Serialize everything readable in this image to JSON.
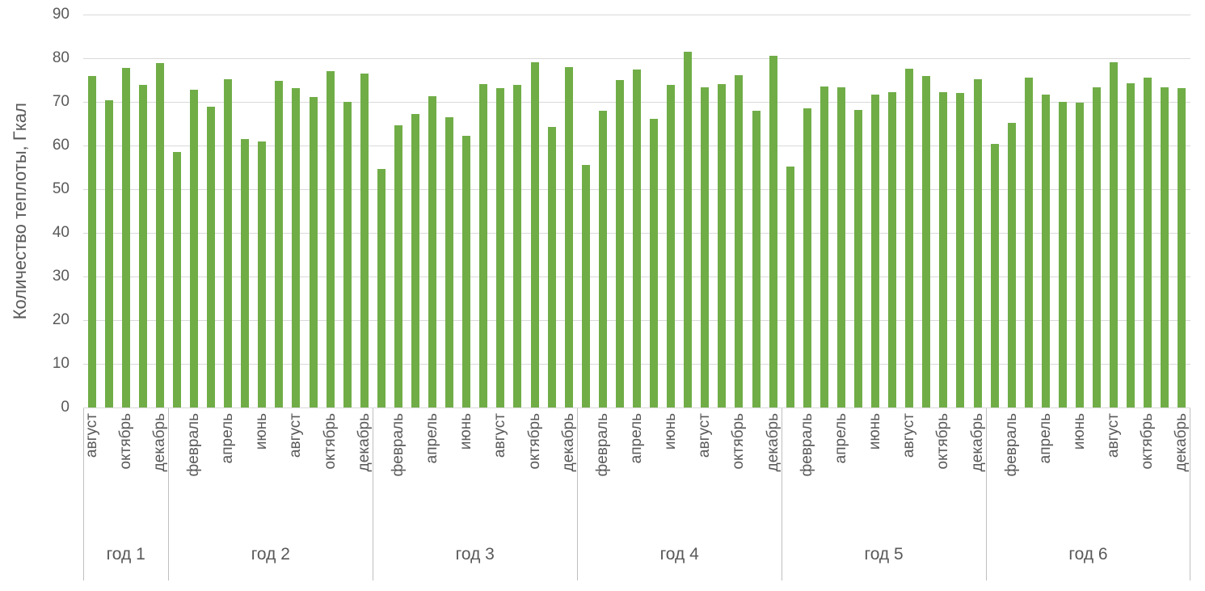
{
  "chart_data": {
    "type": "bar",
    "title": "",
    "xlabel": "",
    "ylabel": "Количество теплоты, Гкал",
    "ylim": [
      0,
      90
    ],
    "yticks": [
      0,
      10,
      20,
      30,
      40,
      50,
      60,
      70,
      80,
      90
    ],
    "grid": true,
    "legend": "none",
    "bar_color": "#70ad47",
    "grid_color": "#d9d9d9",
    "separator_color": "#bfbfbf",
    "text_color": "#595959",
    "series_name": "Количество теплоты",
    "groups": [
      {
        "name": "год 1",
        "tick_labels": [
          "август",
          "",
          "октябрь",
          "",
          "декабрь"
        ],
        "values": [
          76.0,
          70.4,
          77.8,
          73.9,
          78.9
        ]
      },
      {
        "name": "год 2",
        "tick_labels": [
          "",
          "февраль",
          "",
          "апрель",
          "",
          "июнь",
          "",
          "август",
          "",
          "октябрь",
          "",
          "декабрь"
        ],
        "values": [
          58.5,
          72.7,
          68.8,
          75.2,
          61.4,
          61.0,
          74.8,
          73.1,
          71.1,
          77.1,
          70.0,
          76.4
        ]
      },
      {
        "name": "год 3",
        "tick_labels": [
          "",
          "февраль",
          "",
          "апрель",
          "",
          "июнь",
          "",
          "август",
          "",
          "октябрь",
          "",
          "декабрь"
        ],
        "values": [
          54.6,
          64.7,
          67.3,
          71.3,
          66.4,
          62.2,
          74.1,
          73.1,
          73.8,
          79.1,
          64.3,
          78.0
        ]
      },
      {
        "name": "год 4",
        "tick_labels": [
          "",
          "февраль",
          "",
          "апрель",
          "",
          "июнь",
          "",
          "август",
          "",
          "октябрь",
          "",
          "декабрь"
        ],
        "values": [
          55.6,
          68.0,
          75.0,
          77.4,
          66.2,
          73.8,
          81.4,
          73.4,
          74.1,
          76.2,
          68.0,
          80.5
        ]
      },
      {
        "name": "год 5",
        "tick_labels": [
          "",
          "февраль",
          "",
          "апрель",
          "",
          "июнь",
          "",
          "август",
          "",
          "октябрь",
          "",
          "декабрь"
        ],
        "values": [
          55.1,
          68.5,
          73.6,
          73.4,
          68.2,
          71.6,
          72.3,
          77.6,
          76.0,
          72.2,
          72.0,
          75.1
        ]
      },
      {
        "name": "год 6",
        "tick_labels": [
          "",
          "февраль",
          "",
          "апрель",
          "",
          "июнь",
          "",
          "август",
          "",
          "октябрь",
          "",
          "декабрь"
        ],
        "values": [
          60.4,
          65.1,
          75.6,
          71.7,
          70.0,
          69.8,
          73.4,
          79.1,
          74.3,
          75.6,
          73.4,
          73.2
        ]
      }
    ]
  }
}
